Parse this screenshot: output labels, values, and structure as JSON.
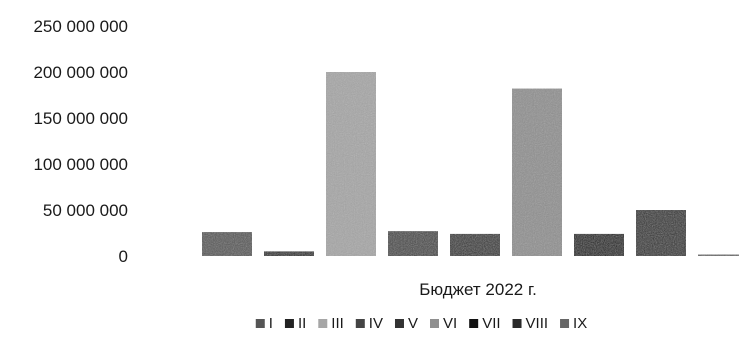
{
  "chart_data": {
    "type": "bar",
    "category": "Бюджет 2022 г.",
    "series": [
      {
        "name": "I",
        "value": 26000000,
        "color": "#555555"
      },
      {
        "name": "II",
        "value": 5000000,
        "color": "#222222"
      },
      {
        "name": "III",
        "value": 200000000,
        "color": "#a6a6a6"
      },
      {
        "name": "IV",
        "value": 27000000,
        "color": "#444444"
      },
      {
        "name": "V",
        "value": 24000000,
        "color": "#333333"
      },
      {
        "name": "VI",
        "value": 182000000,
        "color": "#8f8f8f"
      },
      {
        "name": "VII",
        "value": 24000000,
        "color": "#111111"
      },
      {
        "name": "VIII",
        "value": 50000000,
        "color": "#2a2a2a"
      },
      {
        "name": "IX",
        "value": 1000000,
        "color": "#666666"
      }
    ],
    "y_ticks": [
      "0",
      "50 000 000",
      "100 000 000",
      "150 000 000",
      "200 000 000",
      "250 000 000"
    ],
    "ylim": [
      0,
      250000000
    ],
    "grid": false,
    "legend_position": "bottom"
  }
}
